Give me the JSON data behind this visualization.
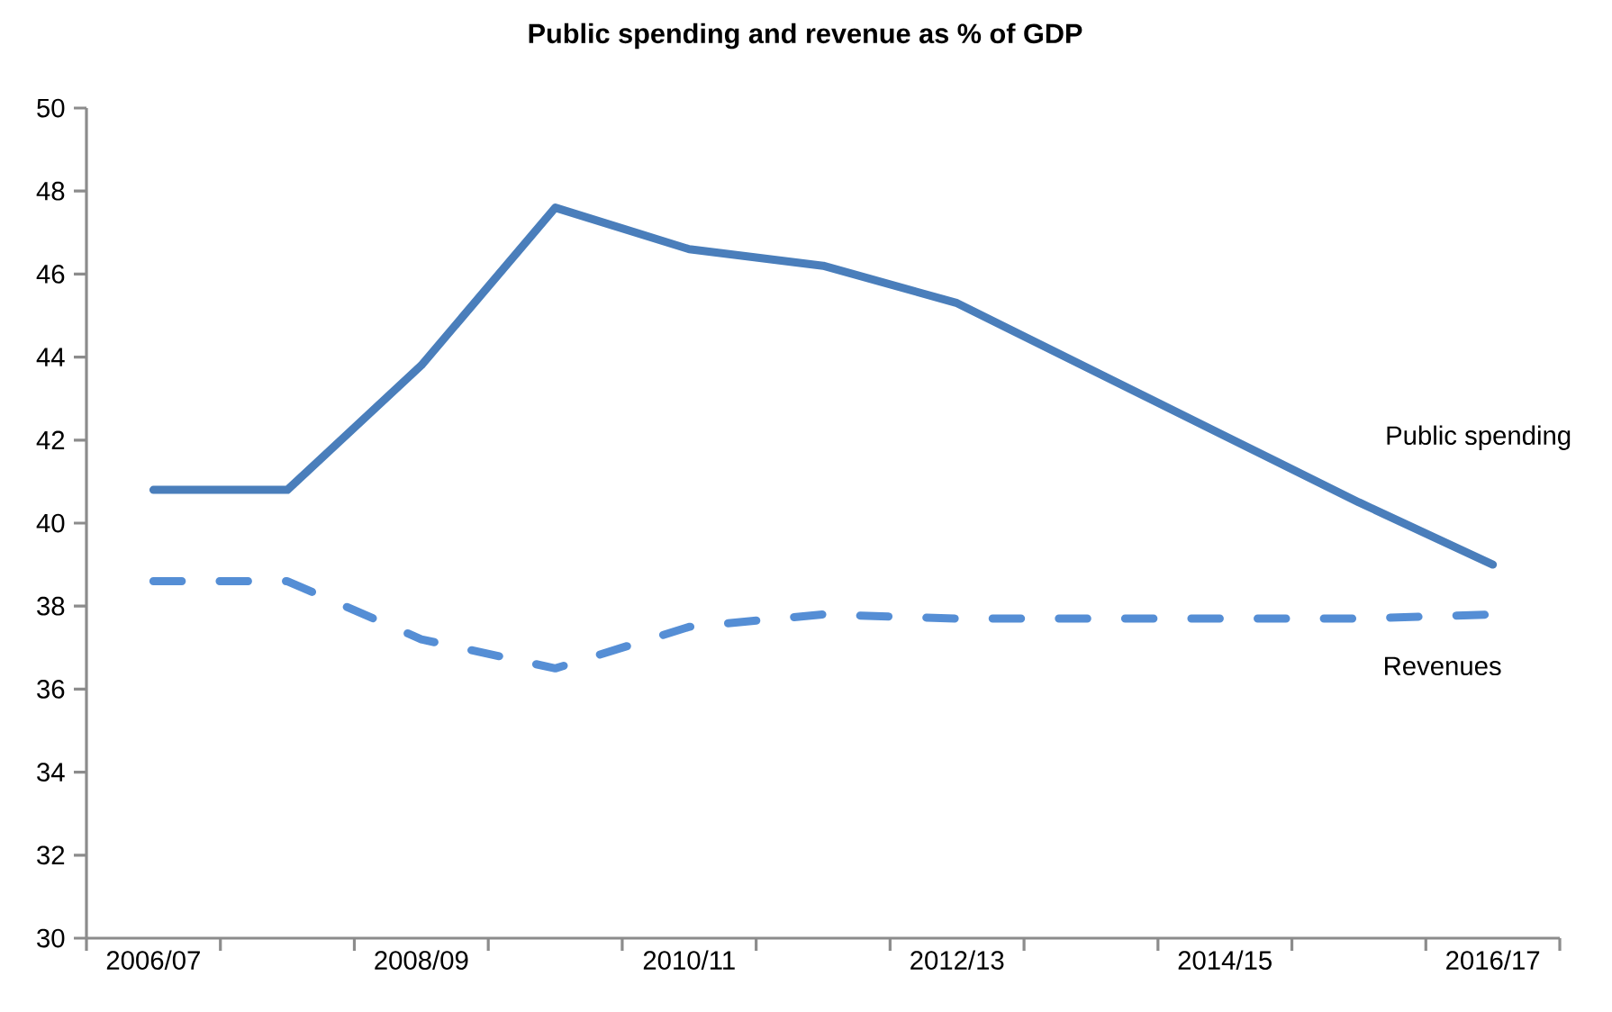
{
  "chart_data": {
    "type": "line",
    "title": "Public spending and revenue as % of GDP",
    "categories": [
      "2006/07",
      null,
      "2008/09",
      null,
      "2010/11",
      null,
      "2012/13",
      null,
      "2014/15",
      null,
      "2016/17"
    ],
    "series": [
      {
        "name": "Public spending",
        "color": "#4a7ebb",
        "line_style": "solid",
        "values": [
          40.8,
          40.8,
          43.8,
          47.6,
          46.6,
          46.2,
          45.3,
          43.7,
          42.1,
          40.5,
          39.0
        ]
      },
      {
        "name": "Revenues",
        "color": "#558ed5",
        "line_style": "dashed",
        "values": [
          38.6,
          38.6,
          37.2,
          36.5,
          37.5,
          37.8,
          37.7,
          37.7,
          37.7,
          37.7,
          37.8
        ]
      }
    ],
    "ylim": [
      30,
      50
    ],
    "yticks": [
      30,
      32,
      34,
      36,
      38,
      40,
      42,
      44,
      46,
      48,
      50
    ]
  }
}
